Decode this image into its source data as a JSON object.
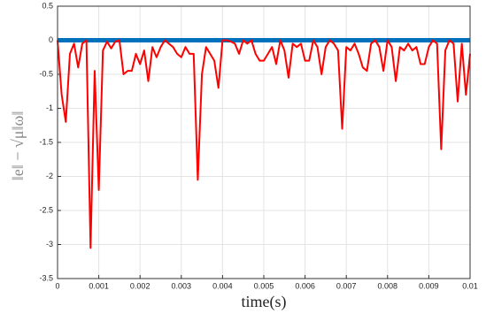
{
  "chart_data": {
    "type": "line",
    "xlabel": "time(s)",
    "ylabel": "‖e‖ − √μ‖ω‖",
    "x": [
      0,
      0.0001,
      0.0002,
      0.0003,
      0.0004,
      0.0005,
      0.0006,
      0.0007,
      0.0008,
      0.0009,
      0.001,
      0.0011,
      0.0012,
      0.0013,
      0.0014,
      0.0015,
      0.0016,
      0.0017,
      0.0018,
      0.0019,
      0.002,
      0.0021,
      0.0022,
      0.0023,
      0.0024,
      0.0025,
      0.0026,
      0.0027,
      0.0028,
      0.0029,
      0.003,
      0.0031,
      0.0032,
      0.0033,
      0.0034,
      0.0035,
      0.0036,
      0.0037,
      0.0038,
      0.0039,
      0.004,
      0.0041,
      0.0042,
      0.0043,
      0.0044,
      0.0045,
      0.0046,
      0.0047,
      0.0048,
      0.0049,
      0.005,
      0.0051,
      0.0052,
      0.0053,
      0.0054,
      0.0055,
      0.0056,
      0.0057,
      0.0058,
      0.0059,
      0.006,
      0.0061,
      0.0062,
      0.0063,
      0.0064,
      0.0065,
      0.0066,
      0.0067,
      0.0068,
      0.0069,
      0.007,
      0.0071,
      0.0072,
      0.0073,
      0.0074,
      0.0075,
      0.0076,
      0.0077,
      0.0078,
      0.0079,
      0.008,
      0.0081,
      0.0082,
      0.0083,
      0.0084,
      0.0085,
      0.0086,
      0.0087,
      0.0088,
      0.0089,
      0.009,
      0.0091,
      0.0092,
      0.0093,
      0.0094,
      0.0095,
      0.0096,
      0.0097,
      0.0098,
      0.0099,
      0.01
    ],
    "series": [
      {
        "color": "#0072bd",
        "linewidth": 5,
        "values": [
          0,
          0,
          0,
          0,
          0,
          0,
          0,
          0,
          0,
          0,
          0,
          0,
          0,
          0,
          0,
          0,
          0,
          0,
          0,
          0,
          0,
          0,
          0,
          0,
          0,
          0,
          0,
          0,
          0,
          0,
          0,
          0,
          0,
          0,
          0,
          0,
          0,
          0,
          0,
          0,
          0,
          0,
          0,
          0,
          0,
          0,
          0,
          0,
          0,
          0,
          0,
          0,
          0,
          0,
          0,
          0,
          0,
          0,
          0,
          0,
          0,
          0,
          0,
          0,
          0,
          0,
          0,
          0,
          0,
          0,
          0,
          0,
          0,
          0,
          0,
          0,
          0,
          0,
          0,
          0,
          0,
          0,
          0,
          0,
          0,
          0,
          0,
          0,
          0,
          0,
          0,
          0,
          0,
          0,
          0,
          0,
          0,
          0,
          0,
          0,
          0
        ]
      },
      {
        "color": "#ff0000",
        "linewidth": 2,
        "values": [
          0,
          -0.8,
          -1.2,
          -0.2,
          -0.05,
          -0.4,
          -0.05,
          0,
          -3.05,
          -0.45,
          -2.2,
          -0.15,
          -0.02,
          -0.12,
          -0.02,
          0,
          -0.5,
          -0.45,
          -0.45,
          -0.2,
          -0.35,
          -0.15,
          -0.6,
          -0.1,
          -0.25,
          -0.1,
          0,
          -0.05,
          -0.1,
          -0.2,
          -0.25,
          -0.1,
          -0.2,
          -0.2,
          -2.05,
          -0.5,
          -0.1,
          -0.2,
          -0.3,
          -0.7,
          0,
          0,
          -0.02,
          -0.05,
          -0.2,
          0,
          -0.05,
          0,
          -0.2,
          -0.3,
          -0.3,
          -0.2,
          -0.1,
          -0.35,
          0,
          -0.15,
          -0.55,
          -0.05,
          -0.1,
          -0.05,
          -0.3,
          -0.3,
          0,
          -0.1,
          -0.5,
          -0.1,
          0,
          -0.05,
          -0.15,
          -1.3,
          -0.1,
          -0.15,
          -0.05,
          -0.2,
          -0.4,
          -0.45,
          -0.05,
          0,
          -0.1,
          -0.45,
          0,
          -0.1,
          -0.6,
          -0.1,
          -0.15,
          -0.05,
          -0.15,
          -0.1,
          -0.35,
          -0.35,
          -0.1,
          0,
          -0.05,
          -1.6,
          -0.15,
          0,
          -0.05,
          -0.9,
          -0.05,
          -0.8,
          -0.2
        ]
      }
    ],
    "xlim": [
      0,
      0.01
    ],
    "xticks": [
      0,
      0.001,
      0.002,
      0.003,
      0.004,
      0.005,
      0.006,
      0.007,
      0.008,
      0.009,
      0.01
    ],
    "ylim": [
      -3.5,
      0.5
    ],
    "yticks": [
      0.5,
      0,
      -0.5,
      -1,
      -1.5,
      -2,
      -2.5,
      -3,
      -3.5
    ],
    "grid": true
  }
}
